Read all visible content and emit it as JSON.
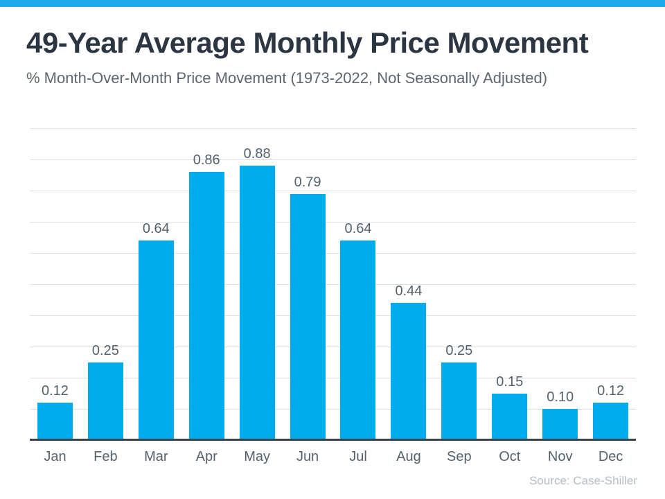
{
  "page": {
    "background": "#ffffff",
    "accent_bar_color": "#19a9ec"
  },
  "header": {
    "title": "49-Year Average Monthly Price Movement",
    "subtitle": "% Month-Over-Month Price Movement (1973-2022, Not Seasonally Adjusted)"
  },
  "chart_data": {
    "type": "bar",
    "title": "49-Year Average Monthly Price Movement",
    "subtitle": "% Month-Over-Month Price Movement (1973-2022, Not Seasonally Adjusted)",
    "categories": [
      "Jan",
      "Feb",
      "Mar",
      "Apr",
      "May",
      "Jun",
      "Jul",
      "Aug",
      "Sep",
      "Oct",
      "Nov",
      "Dec"
    ],
    "values": [
      0.12,
      0.25,
      0.64,
      0.86,
      0.88,
      0.79,
      0.64,
      0.44,
      0.25,
      0.15,
      0.1,
      0.12
    ],
    "value_labels": [
      "0.12",
      "0.25",
      "0.64",
      "0.86",
      "0.88",
      "0.79",
      "0.64",
      "0.44",
      "0.25",
      "0.15",
      "0.10",
      "0.12"
    ],
    "xlabel": "",
    "ylabel": "",
    "ylim": [
      0,
      1.0
    ],
    "gridline_step": 0.1,
    "grid": true,
    "legend": "none",
    "bar_color": "#00aceb",
    "gridline_color": "#dcdfe2",
    "axis_line_color": "#3a434d",
    "label_color": "#54626e"
  },
  "footer": {
    "source": "Source: Case-Shiller"
  }
}
